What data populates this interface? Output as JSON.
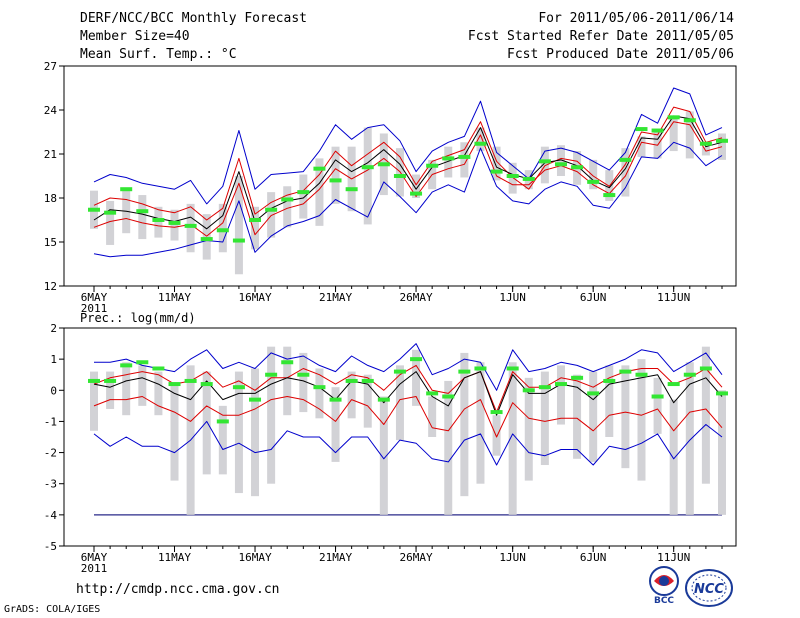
{
  "header": {
    "title": "DERF/NCC/BCC Monthly Forecast",
    "member_size": "Member Size=40",
    "variable": "Mean Surf. Temp.: °C",
    "period": "For 2011/05/06-2011/06/14",
    "started": "Fcst Started Refer Date 2011/05/05",
    "produced": "Fcst Produced Date 2011/05/06"
  },
  "footer": {
    "url": "http://cmdp.ncc.cma.gov.cn",
    "grads": "GrADS: COLA/IGES",
    "logo_bcc": "BCC",
    "logo_ncc": "NCC"
  },
  "colors": {
    "max": "#0000cc",
    "min": "#0000cc",
    "upper": "#dd0000",
    "lower": "#dd0000",
    "mean": "#000000",
    "box": "#d2d2d6",
    "obs": "#33e633",
    "floor": "#2a2a8a"
  },
  "chart_data": [
    {
      "type": "line",
      "title": "Mean Surf. Temp.: °C",
      "ylim": [
        12,
        27
      ],
      "yticks": [
        12,
        15,
        18,
        21,
        24,
        27
      ],
      "xlim": [
        0,
        39
      ],
      "xticks": [
        {
          "day": 0,
          "label": "6MAY",
          "sub": "2011"
        },
        {
          "day": 5,
          "label": "11MAY"
        },
        {
          "day": 10,
          "label": "16MAY"
        },
        {
          "day": 15,
          "label": "21MAY"
        },
        {
          "day": 20,
          "label": "26MAY"
        },
        {
          "day": 26,
          "label": "1JUN"
        },
        {
          "day": 31,
          "label": "6JUN"
        },
        {
          "day": 36,
          "label": "11JUN"
        }
      ],
      "x": [
        0,
        1,
        2,
        3,
        4,
        5,
        6,
        7,
        8,
        9,
        10,
        11,
        12,
        13,
        14,
        15,
        16,
        17,
        18,
        19,
        20,
        21,
        22,
        23,
        24,
        25,
        26,
        27,
        28,
        29,
        30,
        31,
        32,
        33,
        34,
        35,
        36,
        37,
        38,
        39
      ],
      "series": [
        {
          "name": "max",
          "values": [
            19.1,
            19.6,
            19.4,
            19.0,
            18.8,
            18.6,
            19.2,
            17.6,
            18.8,
            22.6,
            18.6,
            19.6,
            19.7,
            19.8,
            21.2,
            23.0,
            22.0,
            22.8,
            23.0,
            21.9,
            19.8,
            21.2,
            21.8,
            22.2,
            24.6,
            21.1,
            20.2,
            19.3,
            21.2,
            21.4,
            21.1,
            20.5,
            19.9,
            21.1,
            23.7,
            23.1,
            25.5,
            25.1,
            22.3,
            22.8
          ]
        },
        {
          "name": "upper",
          "values": [
            17.5,
            18.0,
            17.9,
            17.6,
            17.2,
            17.0,
            17.4,
            16.5,
            17.3,
            20.7,
            16.9,
            17.7,
            18.2,
            18.5,
            19.6,
            21.2,
            20.2,
            21.0,
            21.8,
            20.8,
            18.9,
            20.5,
            20.9,
            21.3,
            23.2,
            20.5,
            19.4,
            18.6,
            20.2,
            20.7,
            20.5,
            19.5,
            18.8,
            20.3,
            22.5,
            22.3,
            24.2,
            23.9,
            21.8,
            22.1
          ]
        },
        {
          "name": "mean",
          "values": [
            16.5,
            17.2,
            17.1,
            16.9,
            16.6,
            16.4,
            16.7,
            15.9,
            16.8,
            19.8,
            16.4,
            17.3,
            17.8,
            18.0,
            19.0,
            20.6,
            19.8,
            20.4,
            21.3,
            20.3,
            18.6,
            20.1,
            20.5,
            20.9,
            22.8,
            20.1,
            19.6,
            19.3,
            20.4,
            20.6,
            20.2,
            19.2,
            18.7,
            20.0,
            22.1,
            22.0,
            23.6,
            23.4,
            21.5,
            21.8
          ]
        },
        {
          "name": "lower",
          "values": [
            16.0,
            16.4,
            16.6,
            16.3,
            16.1,
            16.0,
            16.2,
            15.4,
            16.3,
            19.0,
            15.5,
            16.8,
            17.3,
            17.6,
            18.6,
            20.0,
            19.3,
            19.9,
            20.7,
            19.8,
            18.1,
            19.6,
            20.0,
            20.3,
            22.3,
            19.5,
            18.9,
            18.9,
            19.9,
            20.2,
            19.8,
            18.9,
            18.3,
            19.5,
            21.8,
            21.6,
            23.2,
            23.0,
            21.2,
            21.5
          ]
        },
        {
          "name": "min",
          "values": [
            14.2,
            14.0,
            14.1,
            14.1,
            14.3,
            14.5,
            14.8,
            15.1,
            15.0,
            17.8,
            14.3,
            15.4,
            16.1,
            16.4,
            16.8,
            17.9,
            17.3,
            16.7,
            19.1,
            18.1,
            17.0,
            18.4,
            18.9,
            18.4,
            21.4,
            18.8,
            17.8,
            17.6,
            18.6,
            19.1,
            18.8,
            17.5,
            17.3,
            18.7,
            20.8,
            20.7,
            21.8,
            21.4,
            20.2,
            20.9
          ]
        }
      ],
      "boxes": {
        "low": [
          15.9,
          14.8,
          15.6,
          15.2,
          15.3,
          15.1,
          14.3,
          13.8,
          14.3,
          12.8,
          14.5,
          15.3,
          16.0,
          16.6,
          16.1,
          17.6,
          17.1,
          16.2,
          18.2,
          18.1,
          18.0,
          18.6,
          19.4,
          19.4,
          21.2,
          19.2,
          18.3,
          18.6,
          19.0,
          19.5,
          18.9,
          18.6,
          17.8,
          18.1,
          20.8,
          20.7,
          21.2,
          20.7,
          20.9,
          20.6
        ],
        "high": [
          18.5,
          17.8,
          18.6,
          18.2,
          17.4,
          17.2,
          17.6,
          16.9,
          17.6,
          19.5,
          17.4,
          18.4,
          18.8,
          19.6,
          20.7,
          21.5,
          21.5,
          22.8,
          22.4,
          21.4,
          19.6,
          20.6,
          21.5,
          21.8,
          22.8,
          21.5,
          20.4,
          19.9,
          21.5,
          21.6,
          21.2,
          20.6,
          19.9,
          21.4,
          22.2,
          22.5,
          23.6,
          23.9,
          21.5,
          22.4
        ]
      },
      "obs": [
        17.2,
        17.0,
        18.6,
        17.1,
        16.5,
        16.3,
        16.1,
        15.2,
        15.8,
        15.1,
        16.5,
        17.2,
        17.9,
        18.4,
        20.0,
        19.2,
        18.6,
        20.1,
        20.3,
        19.5,
        18.3,
        20.2,
        20.7,
        20.8,
        21.7,
        19.8,
        19.5,
        19.3,
        20.5,
        20.3,
        20.1,
        19.1,
        18.2,
        20.6,
        22.7,
        22.6,
        23.5,
        23.3,
        21.7,
        21.9
      ]
    },
    {
      "type": "line",
      "title": "Prec.: log(mm/d)",
      "ylim": [
        -5,
        2
      ],
      "yticks": [
        -5,
        -4,
        -3,
        -2,
        -1,
        0,
        1,
        2
      ],
      "xlim": [
        0,
        39
      ],
      "xticks": [
        {
          "day": 0,
          "label": "6MAY",
          "sub": "2011"
        },
        {
          "day": 5,
          "label": "11MAY"
        },
        {
          "day": 10,
          "label": "16MAY"
        },
        {
          "day": 15,
          "label": "21MAY"
        },
        {
          "day": 20,
          "label": "26MAY"
        },
        {
          "day": 26,
          "label": "1JUN"
        },
        {
          "day": 31,
          "label": "6JUN"
        },
        {
          "day": 36,
          "label": "11JUN"
        }
      ],
      "x": [
        0,
        1,
        2,
        3,
        4,
        5,
        6,
        7,
        8,
        9,
        10,
        11,
        12,
        13,
        14,
        15,
        16,
        17,
        18,
        19,
        20,
        21,
        22,
        23,
        24,
        25,
        26,
        27,
        28,
        29,
        30,
        31,
        32,
        33,
        34,
        35,
        36,
        37,
        38,
        39
      ],
      "series": [
        {
          "name": "max",
          "values": [
            0.9,
            0.9,
            1.0,
            0.8,
            0.7,
            0.6,
            1.0,
            1.3,
            0.7,
            0.9,
            0.7,
            1.2,
            1.0,
            1.1,
            0.8,
            0.6,
            1.1,
            0.8,
            0.6,
            1.0,
            1.5,
            0.5,
            0.7,
            1.0,
            0.9,
            0.0,
            1.3,
            0.6,
            0.7,
            0.9,
            0.8,
            0.6,
            0.8,
            1.0,
            1.3,
            1.2,
            0.6,
            0.9,
            1.2,
            0.5
          ]
        },
        {
          "name": "upper",
          "values": [
            0.2,
            0.4,
            0.5,
            0.6,
            0.5,
            0.2,
            0.3,
            0.6,
            0.1,
            0.3,
            0.0,
            0.4,
            0.4,
            0.7,
            0.5,
            0.2,
            0.5,
            0.4,
            0.0,
            0.5,
            0.8,
            0.0,
            -0.1,
            0.4,
            0.6,
            -0.7,
            0.6,
            0.1,
            0.1,
            0.4,
            0.3,
            0.1,
            0.4,
            0.6,
            0.7,
            0.7,
            0.2,
            0.4,
            0.7,
            0.1
          ]
        },
        {
          "name": "mean",
          "values": [
            0.2,
            0.1,
            0.3,
            0.4,
            0.2,
            -0.1,
            -0.3,
            0.3,
            -0.3,
            -0.1,
            -0.1,
            0.2,
            0.4,
            0.3,
            0.1,
            -0.3,
            0.3,
            0.2,
            -0.4,
            0.2,
            0.6,
            -0.2,
            -0.5,
            0.4,
            0.6,
            -0.8,
            0.5,
            -0.1,
            -0.1,
            0.2,
            0.1,
            -0.3,
            0.2,
            0.3,
            0.4,
            0.5,
            -0.4,
            0.2,
            0.4,
            -0.2
          ]
        },
        {
          "name": "lower",
          "values": [
            -0.5,
            -0.3,
            -0.3,
            -0.2,
            -0.5,
            -0.7,
            -1.0,
            -0.5,
            -0.8,
            -0.8,
            -0.6,
            -0.3,
            -0.2,
            -0.3,
            -0.6,
            -1.0,
            -0.3,
            -0.5,
            -1.1,
            -0.3,
            -0.2,
            -1.2,
            -1.3,
            -0.6,
            -0.3,
            -1.5,
            -0.4,
            -0.9,
            -1.0,
            -0.9,
            -0.9,
            -1.3,
            -0.8,
            -0.7,
            -0.8,
            -0.6,
            -1.3,
            -0.7,
            -0.6,
            -1.2
          ]
        },
        {
          "name": "min",
          "values": [
            -1.4,
            -1.8,
            -1.5,
            -1.8,
            -1.8,
            -2.0,
            -1.6,
            -1.0,
            -1.9,
            -1.7,
            -2.0,
            -1.9,
            -1.3,
            -1.5,
            -1.5,
            -2.0,
            -1.5,
            -1.5,
            -2.2,
            -1.6,
            -1.7,
            -2.2,
            -2.3,
            -1.6,
            -1.4,
            -2.4,
            -1.4,
            -2.0,
            -2.1,
            -1.9,
            -1.9,
            -2.4,
            -1.8,
            -1.9,
            -1.7,
            -1.4,
            -2.2,
            -1.6,
            -1.1,
            -1.5
          ]
        }
      ],
      "boxes": {
        "low": [
          -1.3,
          -0.6,
          -0.8,
          -0.5,
          -0.8,
          -2.9,
          -4.0,
          -2.7,
          -2.7,
          -3.3,
          -3.4,
          -3.0,
          -0.8,
          -0.7,
          -0.9,
          -2.3,
          -0.9,
          -1.2,
          -4.0,
          -1.6,
          -0.5,
          -1.5,
          -4.0,
          -3.4,
          -3.0,
          -2.1,
          -4.0,
          -2.9,
          -2.4,
          -1.1,
          -2.2,
          -2.3,
          -1.5,
          -2.5,
          -2.9,
          -1.4,
          -4.0,
          -4.0,
          -3.0,
          -4.0
        ],
        "high": [
          0.6,
          0.6,
          0.9,
          0.8,
          0.6,
          0.2,
          0.8,
          0.6,
          -0.5,
          0.6,
          0.7,
          1.4,
          1.4,
          1.2,
          0.7,
          0.1,
          0.6,
          0.5,
          -0.2,
          0.8,
          1.3,
          -0.2,
          0.3,
          1.2,
          0.9,
          -0.8,
          0.9,
          0.4,
          0.6,
          0.8,
          0.5,
          0.6,
          0.8,
          0.8,
          1.0,
          0.4,
          -0.3,
          0.9,
          1.4,
          0.0
        ]
      },
      "obs": [
        0.3,
        0.3,
        0.8,
        0.9,
        0.7,
        0.2,
        0.3,
        0.2,
        -1.0,
        0.1,
        -0.3,
        0.5,
        0.9,
        0.5,
        0.1,
        -0.3,
        0.3,
        0.3,
        -0.3,
        0.6,
        1.0,
        -0.1,
        -0.2,
        0.6,
        0.7,
        -0.7,
        0.7,
        0.0,
        0.1,
        0.2,
        0.4,
        -0.1,
        0.3,
        0.6,
        0.5,
        -0.2,
        0.2,
        0.5,
        0.7,
        -0.1
      ]
    }
  ]
}
